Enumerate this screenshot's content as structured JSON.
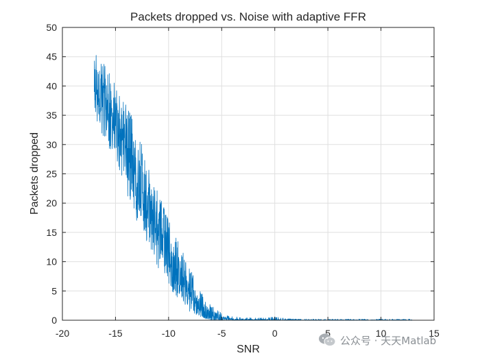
{
  "chart_data": {
    "type": "line",
    "title": "Packets dropped vs. Noise with adaptive FFR",
    "xlabel": "SNR",
    "ylabel": "Packets dropped",
    "xlim": [
      -20,
      15
    ],
    "ylim": [
      0,
      50
    ],
    "xticks": [
      -20,
      -15,
      -10,
      -5,
      0,
      5,
      10,
      15
    ],
    "yticks": [
      0,
      5,
      10,
      15,
      20,
      25,
      30,
      35,
      40,
      45,
      50
    ],
    "grid": true,
    "series": [
      {
        "color": "#0072BD",
        "noisy": true,
        "x": [
          -17,
          -16.5,
          -16,
          -15.5,
          -15,
          -14.5,
          -14,
          -13.5,
          -13,
          -12.5,
          -12,
          -11.5,
          -11,
          -10.5,
          -10,
          -9.5,
          -9,
          -8.5,
          -8,
          -7.5,
          -7,
          -6.5,
          -6,
          -5.5,
          -5,
          -4.5,
          -4,
          -3,
          -2,
          -1,
          0,
          1,
          2,
          4,
          6,
          8,
          10,
          12,
          13
        ],
        "y": [
          40.5,
          38.5,
          36.5,
          35,
          33.5,
          31.5,
          29.5,
          27,
          25,
          22.5,
          20,
          17.5,
          15.5,
          13.5,
          11,
          9,
          7.5,
          6,
          4.5,
          3.2,
          2.2,
          1.4,
          0.9,
          0.6,
          0.4,
          0.25,
          0.15,
          0.08,
          0.05,
          0.05,
          0.05,
          0.03,
          0.03,
          0.02,
          0.02,
          0.02,
          0.02,
          0.02,
          0.02
        ],
        "envelope_max": [
          46.5,
          45,
          44,
          42,
          41,
          38,
          37,
          35,
          33,
          30,
          27,
          24,
          22,
          20,
          17,
          15,
          13,
          11,
          9,
          7,
          5,
          3.5,
          2.5,
          2,
          1.2,
          0.8,
          0.6,
          0.5,
          0.4,
          0.4,
          0.6,
          0.3,
          0.2,
          0.2,
          0.2,
          0.2,
          0.2,
          0.2,
          0.2
        ],
        "envelope_min": [
          35.5,
          32,
          30,
          29,
          28,
          25,
          22,
          19,
          17,
          15,
          13,
          11,
          9,
          7.5,
          6,
          4.5,
          3.5,
          2.5,
          1.5,
          1,
          0.5,
          0.2,
          0,
          0,
          0,
          0,
          0,
          0,
          0,
          0,
          0,
          0,
          0,
          0,
          0,
          0,
          0,
          0,
          0
        ]
      }
    ]
  },
  "watermark": {
    "icon": "wechat-icon",
    "text": "公众号 · 天天Matlab"
  }
}
